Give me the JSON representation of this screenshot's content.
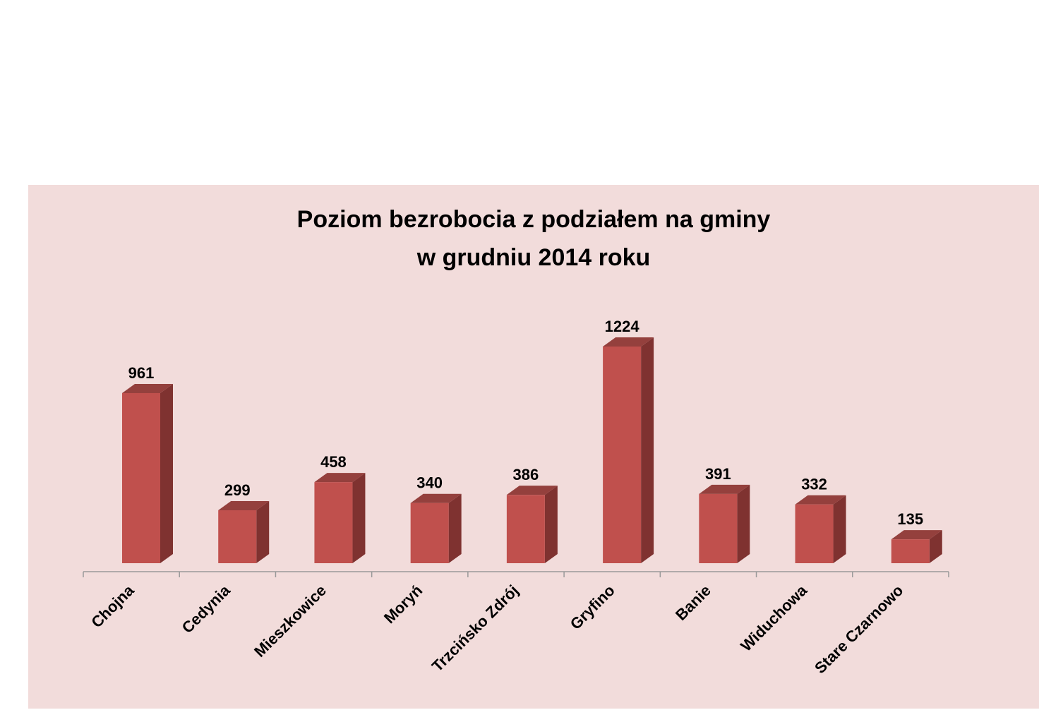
{
  "chart_data": {
    "type": "bar3d",
    "title": "Poziom bezrobocia z podziałem na gminy\nw grudniu 2014 roku",
    "categories": [
      "Chojna",
      "Cedynia",
      "Mieszkowice",
      "Moryń",
      "Trzcińsko Zdrój",
      "Gryfino",
      "Banie",
      "Widuchowa",
      "Stare Czarnowo"
    ],
    "values": [
      961,
      299,
      458,
      340,
      386,
      1224,
      391,
      332,
      135
    ],
    "color": "#c0504d"
  }
}
